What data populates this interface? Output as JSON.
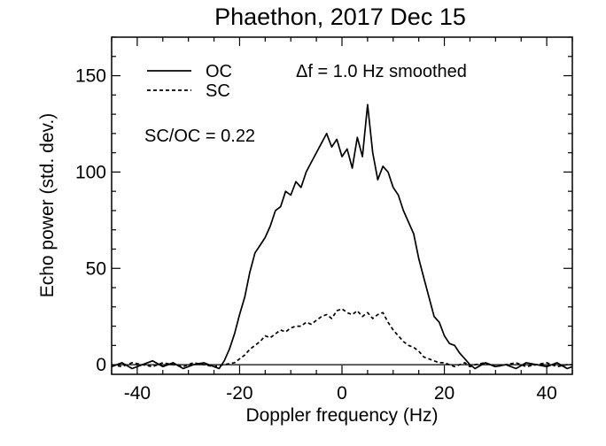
{
  "chart_data": {
    "type": "line",
    "title": "Phaethon, 2017 Dec 15",
    "xlabel": "Doppler frequency (Hz)",
    "ylabel": "Echo power (std. dev.)",
    "xlim": [
      -45,
      45
    ],
    "ylim": [
      -5,
      170
    ],
    "xticks": [
      -40,
      -20,
      0,
      20,
      40
    ],
    "yticks": [
      0,
      50,
      100,
      150
    ],
    "grid": false,
    "legend_position": "top-left",
    "annotations": {
      "resolution": "Δf = 1.0 Hz smoothed",
      "ratio": "SC/OC = 0.22"
    },
    "series": [
      {
        "name": "OC",
        "style": "solid",
        "x": [
          -45,
          -43,
          -41,
          -39,
          -37,
          -35,
          -33,
          -31,
          -29,
          -27,
          -25,
          -24,
          -23,
          -22,
          -21,
          -20,
          -19,
          -18,
          -17,
          -16,
          -15,
          -14,
          -13,
          -12,
          -11,
          -10,
          -9,
          -8,
          -7,
          -6,
          -5,
          -4,
          -3,
          -2,
          -1,
          0,
          1,
          2,
          3,
          4,
          5,
          6,
          7,
          8,
          9,
          10,
          11,
          12,
          13,
          14,
          15,
          16,
          17,
          18,
          19,
          20,
          21,
          22,
          23,
          24,
          25,
          26,
          28,
          30,
          32,
          34,
          36,
          38,
          40,
          42,
          44,
          45
        ],
        "y": [
          -1,
          1,
          -2,
          0,
          2,
          -1,
          1,
          -2,
          0,
          1,
          -1,
          -2,
          2,
          8,
          16,
          26,
          35,
          48,
          58,
          62,
          66,
          72,
          80,
          82,
          90,
          88,
          95,
          92,
          100,
          105,
          110,
          115,
          120,
          113,
          117,
          108,
          112,
          102,
          118,
          108,
          135,
          110,
          96,
          103,
          100,
          92,
          88,
          80,
          74,
          68,
          55,
          45,
          35,
          25,
          22,
          15,
          11,
          10,
          6,
          3,
          0,
          -2,
          1,
          -1,
          0,
          -2,
          1,
          0,
          -1,
          1,
          -2,
          -1
        ]
      },
      {
        "name": "SC",
        "style": "dashed",
        "x": [
          -45,
          -43,
          -41,
          -39,
          -37,
          -35,
          -33,
          -31,
          -29,
          -27,
          -25,
          -23,
          -21,
          -20,
          -19,
          -18,
          -17,
          -16,
          -15,
          -14,
          -13,
          -12,
          -11,
          -10,
          -9,
          -8,
          -7,
          -6,
          -5,
          -4,
          -3,
          -2,
          -1,
          0,
          1,
          2,
          3,
          4,
          5,
          6,
          7,
          8,
          9,
          10,
          11,
          12,
          13,
          14,
          15,
          16,
          17,
          18,
          19,
          20,
          21,
          22,
          23,
          24,
          25,
          26,
          28,
          30,
          32,
          34,
          36,
          38,
          40,
          42,
          44,
          45
        ],
        "y": [
          0,
          -1,
          1,
          0,
          -1,
          1,
          0,
          -1,
          1,
          0,
          -1,
          0,
          1,
          3,
          5,
          8,
          10,
          12,
          15,
          14,
          16,
          18,
          17,
          19,
          20,
          20,
          22,
          21,
          23,
          25,
          26,
          24,
          28,
          29,
          27,
          26,
          28,
          25,
          27,
          24,
          26,
          27,
          22,
          18,
          15,
          12,
          10,
          9,
          7,
          4,
          3,
          2,
          1,
          1,
          0,
          -1,
          0,
          1,
          -1,
          0,
          1,
          -1,
          0,
          1,
          -1,
          0,
          1,
          -1,
          0,
          0
        ]
      }
    ]
  }
}
